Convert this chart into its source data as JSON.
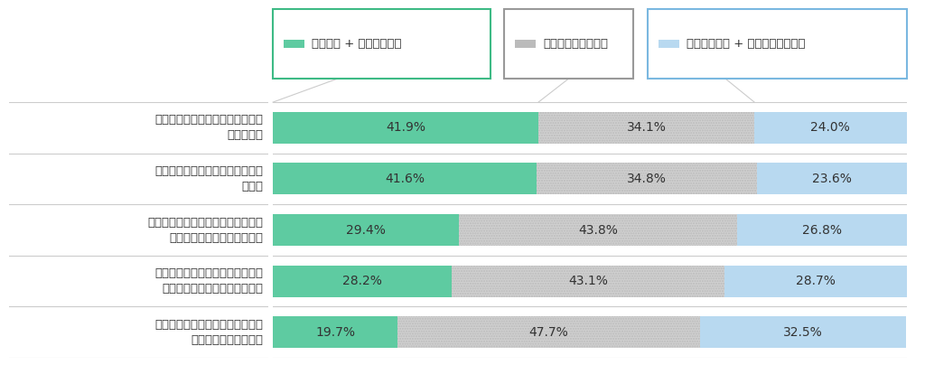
{
  "categories": [
    "以前に比べ、仕事の選択肢が減っ\nたと感じる",
    "以前に比べ、仕事探しが難しいと\n感じる",
    "以前に比べ、自分の将来やキャリア\nの見通しが立たないと感じる",
    "仕事を選ぶ場合には、新型コロナ\nの感染リスク等を考慮して選ぶ",
    "以前に比べ、学業と仕事の両立が\n難しくなったと感じる"
  ],
  "values_agree": [
    41.9,
    41.6,
    29.4,
    28.2,
    19.7
  ],
  "values_neutral": [
    34.1,
    34.8,
    43.8,
    43.1,
    47.7
  ],
  "values_disagree": [
    24.0,
    23.6,
    26.8,
    28.7,
    32.5
  ],
  "color_agree": "#5ecba1",
  "color_neutral": "#d0d0d0",
  "color_neutral_pattern": "#bbbbbb",
  "color_disagree": "#b8d9f0",
  "legend_agree": "そう思う + ややそう思う",
  "legend_neutral": "どちらともいえない",
  "legend_disagree": "そう思わない + ややそう思わない",
  "border_agree": "#3dba85",
  "border_neutral": "#999999",
  "border_disagree": "#7ab8e0",
  "background_color": "#ffffff",
  "bar_height": 0.62,
  "label_fontsize": 10,
  "category_fontsize": 9.5,
  "legend_fontsize": 9.5,
  "separator_color": "#cccccc",
  "text_color": "#333333"
}
